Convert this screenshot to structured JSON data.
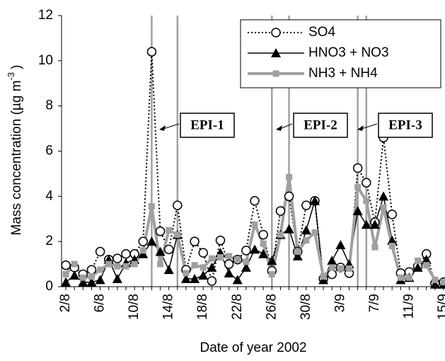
{
  "chart_data": {
    "type": "line",
    "xlabel": "Date of year 2002",
    "ylabel": "Mass concentration  (µg m",
    "ylabel_sup": "-3",
    "ylabel_end": ")",
    "categories": [
      "2/8",
      null,
      null,
      null,
      "6/8",
      null,
      null,
      null,
      "10/8",
      null,
      null,
      null,
      "14/8",
      null,
      null,
      null,
      "18/8",
      null,
      null,
      null,
      "22/8",
      null,
      null,
      null,
      "26/8",
      null,
      null,
      null,
      "30/8",
      null,
      null,
      null,
      "3/9",
      null,
      null,
      null,
      "7/9",
      null,
      null,
      null,
      "11/9",
      null,
      null,
      null,
      "15/9"
    ],
    "ylim": [
      0,
      12
    ],
    "yticks": [
      0,
      2,
      4,
      6,
      8,
      10,
      12
    ],
    "grid": false,
    "legend": "upper right",
    "episode_lines": [
      10,
      13,
      24,
      26,
      34,
      35
    ],
    "annotations": [
      "EPI-1",
      "EPI-2",
      "EPI-3"
    ],
    "series": [
      {
        "name": "SO4",
        "color": "#000000",
        "marker": "circle",
        "dash": "dotted",
        "values": [
          0.95,
          0.85,
          0.55,
          0.75,
          1.55,
          1.2,
          1.25,
          1.45,
          1.45,
          2.0,
          10.4,
          2.45,
          1.65,
          3.6,
          0.75,
          2.0,
          1.5,
          0.25,
          2.05,
          1.0,
          1.2,
          1.6,
          3.8,
          2.3,
          0.7,
          3.35,
          4.0,
          1.55,
          3.6,
          3.8,
          0.35,
          0.55,
          0.85,
          0.6,
          5.25,
          4.6,
          2.85,
          6.6,
          3.2,
          0.6,
          0.65,
          0.9,
          1.45,
          0.15,
          0.2
        ]
      },
      {
        "name": "HNO3 + NO3",
        "color": "#000000",
        "marker": "triangle",
        "dash": "solid",
        "values": [
          0.2,
          0.5,
          0.2,
          0.2,
          0.3,
          1.2,
          0.35,
          1.05,
          1.2,
          1.45,
          2.0,
          1.55,
          0.75,
          2.3,
          0.35,
          0.35,
          0.5,
          0.85,
          1.5,
          0.6,
          0.3,
          0.85,
          1.65,
          1.45,
          1.15,
          2.3,
          2.55,
          1.35,
          2.5,
          3.8,
          0.3,
          1.15,
          1.85,
          1.0,
          3.35,
          2.75,
          2.75,
          4.0,
          2.05,
          0.3,
          0.4,
          0.85,
          1.2,
          0.1,
          0.1
        ]
      },
      {
        "name": "NH3 + NH4",
        "color": "#a0a0a0",
        "marker": "square",
        "dash": "thick",
        "values": [
          0.55,
          1.0,
          0.4,
          0.45,
          0.75,
          1.0,
          0.9,
          0.9,
          1.0,
          1.6,
          3.55,
          1.0,
          2.5,
          2.3,
          0.6,
          0.95,
          0.85,
          1.25,
          1.3,
          1.35,
          1.2,
          1.1,
          2.75,
          1.9,
          0.55,
          2.3,
          4.85,
          1.55,
          2.05,
          2.4,
          0.45,
          0.85,
          0.8,
          0.8,
          4.4,
          3.8,
          1.75,
          3.5,
          1.8,
          0.4,
          0.4,
          1.15,
          0.95,
          0.3,
          0.2
        ]
      }
    ]
  }
}
